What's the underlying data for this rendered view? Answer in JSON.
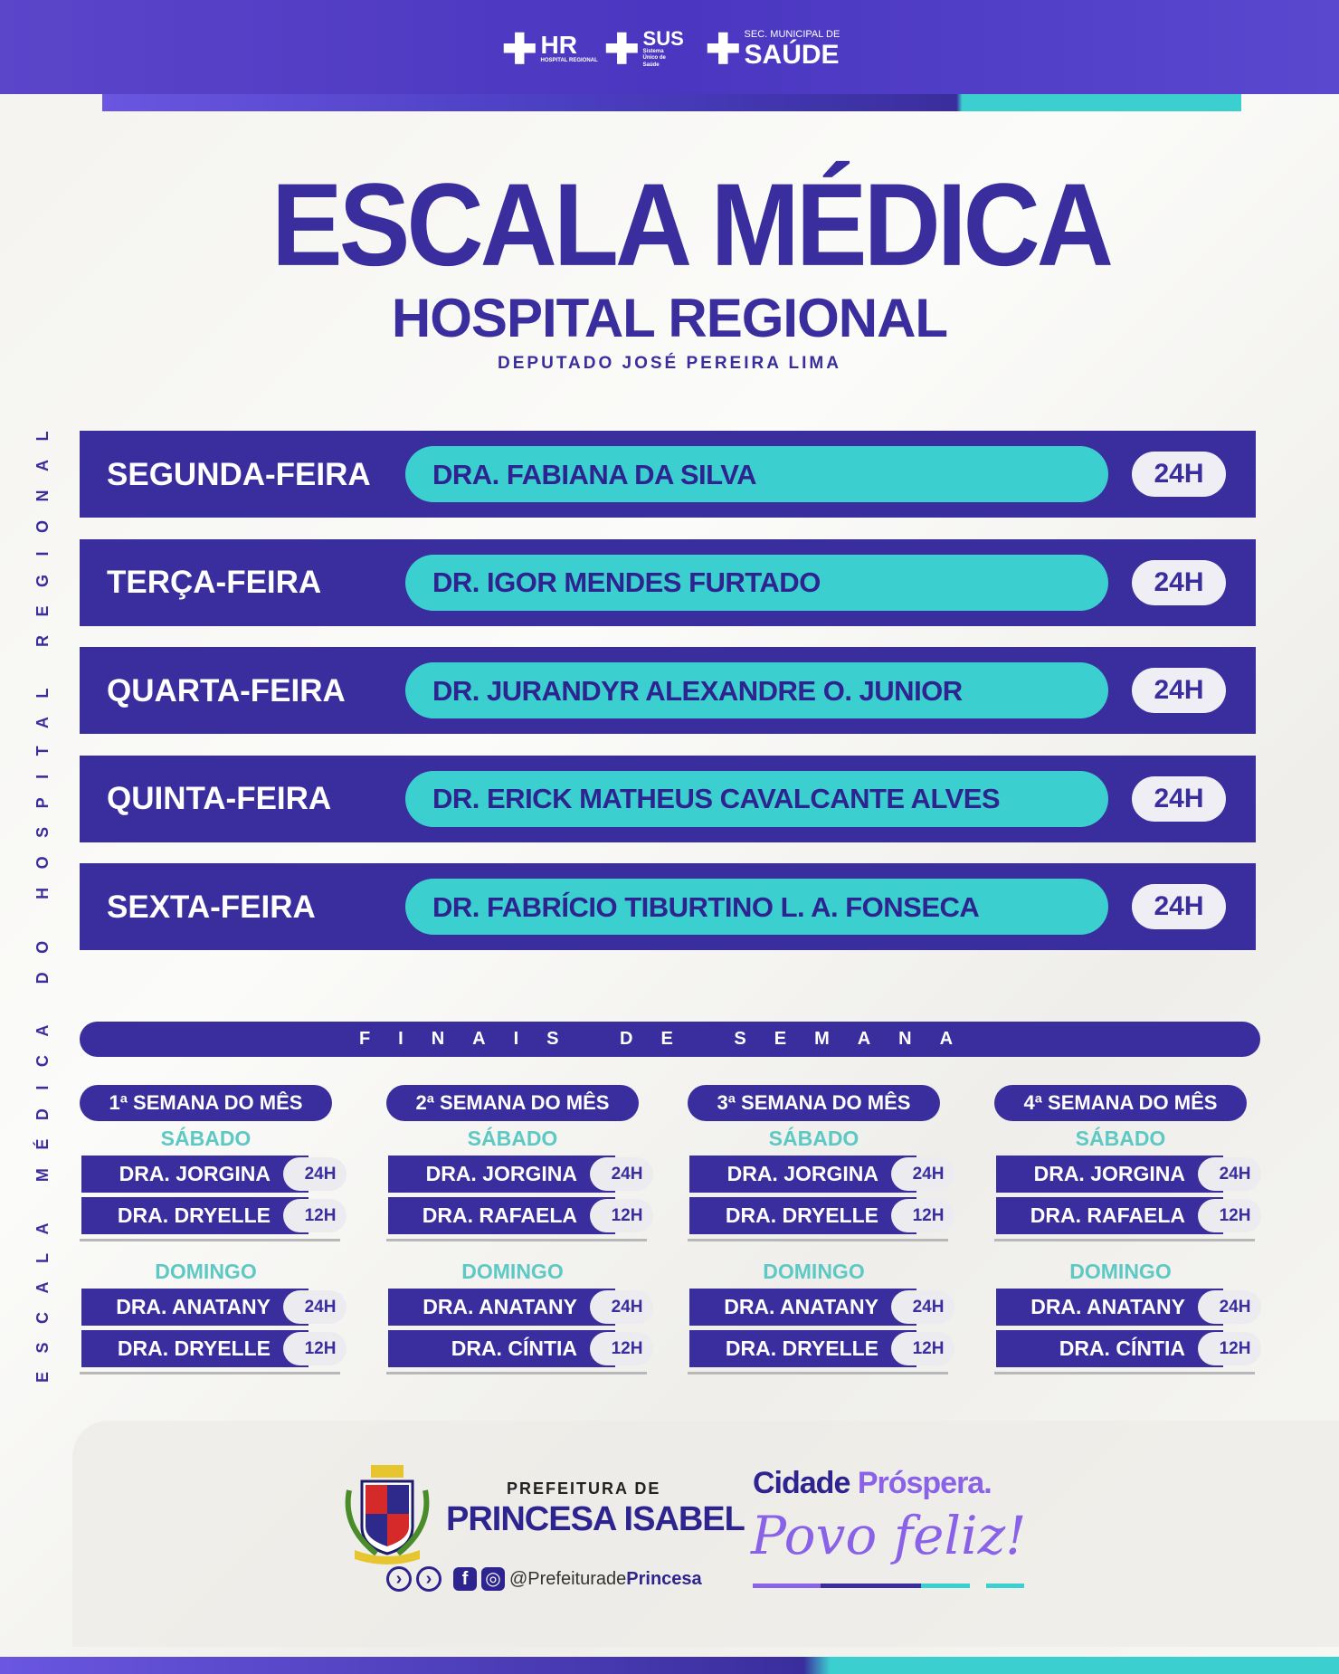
{
  "header": {
    "logos": [
      {
        "name": "HR",
        "sub": "HOSPITAL REGIONAL"
      },
      {
        "name": "SUS",
        "sub": "Sistema Único de Saúde"
      },
      {
        "name": "SAÚDE",
        "sub": "SEC. MUNICIPAL DE"
      }
    ]
  },
  "title": "ESCALA MÉDICA",
  "subtitle": "HOSPITAL REGIONAL",
  "subtitle2": "DEPUTADO JOSÉ PEREIRA LIMA",
  "vertical_text": "ESCALA MÉDICA DO HOSPITAL REGIONAL",
  "weekdays": [
    {
      "day": "SEGUNDA-FEIRA",
      "doctor": "DRA. FABIANA DA SILVA",
      "hours": "24H"
    },
    {
      "day": "TERÇA-FEIRA",
      "doctor": "DR. IGOR MENDES FURTADO",
      "hours": "24H"
    },
    {
      "day": "QUARTA-FEIRA",
      "doctor": "DR. JURANDYR ALEXANDRE O. JUNIOR",
      "hours": "24H"
    },
    {
      "day": "QUINTA-FEIRA",
      "doctor": "DR. ERICK MATHEUS CAVALCANTE ALVES",
      "hours": "24H"
    },
    {
      "day": "SEXTA-FEIRA",
      "doctor": "DR. FABRÍCIO TIBURTINO L. A. FONSECA",
      "hours": "24H"
    }
  ],
  "weekends": {
    "title": "FINAIS DE SEMANA",
    "saturday_label": "SÁBADO",
    "sunday_label": "DOMINGO",
    "weeks": [
      {
        "label": "1ª SEMANA DO MÊS",
        "sat": [
          {
            "name": "DRA. JORGINA",
            "hours": "24H"
          },
          {
            "name": "DRA. DRYELLE",
            "hours": "12H"
          }
        ],
        "sun": [
          {
            "name": "DRA. ANATANY",
            "hours": "24H"
          },
          {
            "name": "DRA. DRYELLE",
            "hours": "12H"
          }
        ]
      },
      {
        "label": "2ª SEMANA DO MÊS",
        "sat": [
          {
            "name": "DRA. JORGINA",
            "hours": "24H"
          },
          {
            "name": "DRA. RAFAELA",
            "hours": "12H"
          }
        ],
        "sun": [
          {
            "name": "DRA. ANATANY",
            "hours": "24H"
          },
          {
            "name": "DRA. CÍNTIA",
            "hours": "12H"
          }
        ]
      },
      {
        "label": "3ª SEMANA DO MÊS",
        "sat": [
          {
            "name": "DRA. JORGINA",
            "hours": "24H"
          },
          {
            "name": "DRA. DRYELLE",
            "hours": "12H"
          }
        ],
        "sun": [
          {
            "name": "DRA. ANATANY",
            "hours": "24H"
          },
          {
            "name": "DRA. DRYELLE",
            "hours": "12H"
          }
        ]
      },
      {
        "label": "4ª SEMANA DO MÊS",
        "sat": [
          {
            "name": "DRA. JORGINA",
            "hours": "24H"
          },
          {
            "name": "DRA. RAFAELA",
            "hours": "12H"
          }
        ],
        "sun": [
          {
            "name": "DRA. ANATANY",
            "hours": "24H"
          },
          {
            "name": "DRA. CÍNTIA",
            "hours": "12H"
          }
        ]
      }
    ]
  },
  "footer": {
    "pre": "PREFEITURA DE",
    "city": "PRINCESA ISABEL",
    "handle_pre": "@Prefeiturade",
    "handle_bold": "Princesa",
    "slogan1a": "Cidade ",
    "slogan1b": "Próspera.",
    "slogan2": "Povo feliz!"
  },
  "colors": {
    "primary": "#3a2e9e",
    "accent": "#3ccfcf",
    "header": "#5b45c9"
  }
}
